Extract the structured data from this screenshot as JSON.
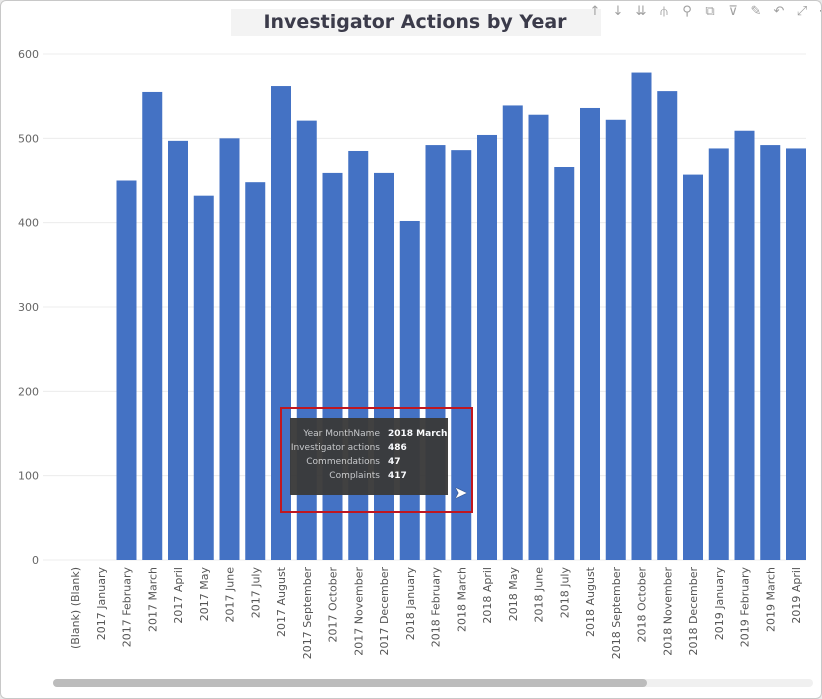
{
  "toolbar": {
    "icons": [
      "arrow-up-icon",
      "arrow-down-icon",
      "double-arrow-down-icon",
      "expand-hierarchy-icon",
      "pin-icon",
      "copy-icon",
      "filter-icon",
      "format-icon",
      "undo-icon",
      "focus-mode-icon",
      "more-options-icon"
    ]
  },
  "tooltip": {
    "rows": [
      {
        "label": "Year MonthName",
        "value": "2018 March"
      },
      {
        "label": "Investigator actions",
        "value": "486"
      },
      {
        "label": "Commendations",
        "value": "47"
      },
      {
        "label": "Complaints",
        "value": "417"
      }
    ]
  },
  "chart_data": {
    "type": "bar",
    "title": "Investigator Actions by Year",
    "xlabel": "",
    "ylabel": "",
    "ylim": [
      0,
      600
    ],
    "yticks": [
      "0",
      "100",
      "200",
      "300",
      "400",
      "500",
      "600"
    ],
    "grid": true,
    "bar_color": "#4472c4",
    "categories": [
      "(Blank) (Blank)",
      "2017 January",
      "2017 February",
      "2017 March",
      "2017 April",
      "2017 May",
      "2017 June",
      "2017 July",
      "2017 August",
      "2017 September",
      "2017 October",
      "2017 November",
      "2017 December",
      "2018 January",
      "2018 February",
      "2018 March",
      "2018 April",
      "2018 May",
      "2018 June",
      "2018 July",
      "2018 August",
      "2018 September",
      "2018 October",
      "2018 November",
      "2018 December",
      "2019 January",
      "2019 February",
      "2019 March",
      "2019 April"
    ],
    "values": [
      0,
      0,
      450,
      555,
      497,
      432,
      500,
      448,
      562,
      521,
      459,
      485,
      459,
      402,
      492,
      486,
      504,
      539,
      528,
      466,
      536,
      522,
      578,
      556,
      457,
      488,
      509,
      492,
      488
    ]
  }
}
